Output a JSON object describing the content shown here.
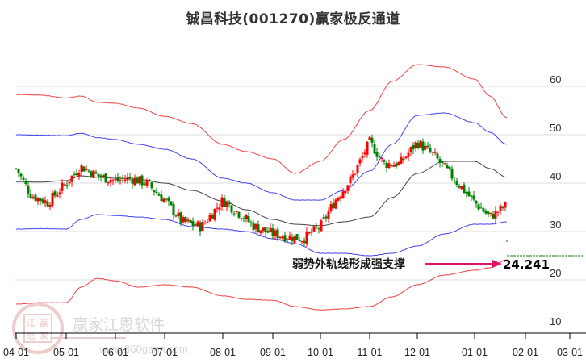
{
  "title": "铖昌科技(001270)赢家极反通道",
  "annotation": {
    "label": "弱势外轨线形成强支撑",
    "value": "24.241",
    "arrow_color": "#e0136b"
  },
  "watermark": {
    "name": "赢家江恩软件",
    "url": "www.360gann.com",
    "seal": [
      "江",
      "赢",
      "恩",
      "家"
    ]
  },
  "colors": {
    "up": "#ff0000",
    "down": "#008000",
    "outer_band": "#ff0000",
    "inner_band": "#0000ff",
    "mid_line": "#000000",
    "grid": "#dddddd",
    "support_dash": "#008000"
  },
  "chart_data": {
    "type": "candlestick",
    "title": "铖昌科技(001270)赢家极反通道",
    "xlabel": "",
    "ylabel": "",
    "ylim": [
      10,
      65
    ],
    "y_ticks": [
      10,
      20,
      30,
      40,
      50,
      60
    ],
    "x_ticks": [
      "04-01",
      "05-01",
      "06-01",
      "07-01",
      "08-01",
      "09-01",
      "10-01",
      "11-01",
      "12-01",
      "01-01",
      "02-01",
      "03-01"
    ],
    "grid": "horizontal",
    "legend": "none",
    "annotations": [
      {
        "text": "弱势外轨线形成强支撑",
        "value": 24.241,
        "target_x": "01-20"
      }
    ],
    "series": [
      {
        "name": "upper_outer_band",
        "color": "red",
        "x": [
          "04-01",
          "04-15",
          "05-01",
          "05-10",
          "05-20",
          "06-01",
          "06-15",
          "07-01",
          "07-15",
          "08-01",
          "08-15",
          "09-01",
          "09-15",
          "10-01",
          "10-15",
          "11-01",
          "11-15",
          "12-01",
          "12-15",
          "01-01",
          "01-10",
          "01-20"
        ],
        "values": [
          58.3,
          58.2,
          57.6,
          58.0,
          56.7,
          56.5,
          55.5,
          53.8,
          52.3,
          48.0,
          46.5,
          45.0,
          42.0,
          44.5,
          49.0,
          55.0,
          61.0,
          64.5,
          64.0,
          61.5,
          58.0,
          53.5
        ]
      },
      {
        "name": "upper_inner_band",
        "color": "blue",
        "x": [
          "04-01",
          "04-15",
          "05-01",
          "05-10",
          "05-20",
          "06-01",
          "06-15",
          "07-01",
          "07-15",
          "08-01",
          "08-15",
          "09-01",
          "09-15",
          "10-01",
          "10-15",
          "11-01",
          "11-15",
          "12-01",
          "12-15",
          "01-01",
          "01-10",
          "01-20"
        ],
        "values": [
          50.0,
          49.9,
          49.8,
          50.3,
          49.4,
          49.0,
          48.0,
          47.0,
          45.0,
          41.0,
          40.0,
          38.0,
          36.5,
          36.5,
          38.5,
          42.5,
          48.0,
          54.0,
          54.5,
          52.5,
          50.5,
          48.0
        ]
      },
      {
        "name": "middle_line",
        "color": "black",
        "x": [
          "04-01",
          "04-15",
          "05-01",
          "05-10",
          "05-20",
          "06-01",
          "06-15",
          "07-01",
          "07-15",
          "08-01",
          "08-15",
          "09-01",
          "09-15",
          "10-01",
          "10-15",
          "11-01",
          "11-15",
          "12-01",
          "12-15",
          "01-01",
          "01-10",
          "01-20"
        ],
        "values": [
          40.3,
          40.2,
          40.5,
          41.5,
          41.2,
          41.0,
          40.8,
          40.0,
          38.5,
          36.3,
          34.5,
          32.5,
          31.5,
          31.2,
          32.0,
          33.0,
          37.0,
          42.0,
          44.5,
          44.5,
          43.0,
          41.2
        ]
      },
      {
        "name": "lower_inner_band",
        "color": "blue",
        "x": [
          "04-01",
          "04-15",
          "05-01",
          "05-10",
          "05-20",
          "06-01",
          "06-15",
          "07-01",
          "07-15",
          "08-01",
          "08-15",
          "09-01",
          "09-15",
          "10-01",
          "10-15",
          "11-01",
          "11-15",
          "12-01",
          "12-15",
          "01-01",
          "01-10",
          "01-20"
        ],
        "values": [
          30.5,
          30.6,
          30.5,
          32.5,
          33.5,
          33.3,
          33.0,
          32.5,
          31.0,
          30.5,
          30.0,
          28.5,
          27.5,
          25.5,
          25.5,
          25.0,
          25.5,
          27.0,
          29.5,
          31.5,
          31.5,
          32.0
        ]
      },
      {
        "name": "lower_outer_band",
        "color": "red",
        "x": [
          "04-01",
          "04-15",
          "05-01",
          "05-10",
          "05-20",
          "06-01",
          "06-15",
          "07-01",
          "07-15",
          "08-01",
          "08-15",
          "09-01",
          "09-15",
          "10-01",
          "10-15",
          "11-01",
          "11-15",
          "12-01",
          "12-15",
          "01-01",
          "01-10",
          "01-20"
        ],
        "values": [
          15.0,
          15.3,
          15.3,
          18.5,
          20.3,
          19.8,
          18.5,
          19.0,
          18.5,
          16.7,
          16.0,
          15.8,
          14.5,
          13.8,
          14.0,
          14.5,
          16.5,
          19.0,
          21.0,
          22.0,
          22.5,
          24.2
        ]
      },
      {
        "name": "price_close_approx",
        "color": "red/green candles",
        "x": [
          "04-01",
          "04-10",
          "04-20",
          "05-01",
          "05-10",
          "05-20",
          "06-01",
          "06-10",
          "06-20",
          "07-01",
          "07-10",
          "07-20",
          "08-01",
          "08-10",
          "08-20",
          "09-01",
          "09-10",
          "09-20",
          "10-01",
          "10-10",
          "10-20",
          "11-01",
          "11-10",
          "11-20",
          "12-01",
          "12-10",
          "12-20",
          "01-01",
          "01-10",
          "01-20"
        ],
        "values": [
          43.0,
          37.5,
          36.0,
          40.0,
          43.5,
          41.5,
          40.5,
          41.0,
          40.0,
          36.5,
          32.0,
          31.0,
          36.5,
          34.0,
          31.0,
          29.5,
          29.0,
          28.5,
          31.0,
          36.5,
          41.0,
          48.5,
          44.0,
          44.0,
          48.5,
          45.5,
          41.0,
          36.0,
          33.0,
          35.5
        ]
      }
    ]
  }
}
